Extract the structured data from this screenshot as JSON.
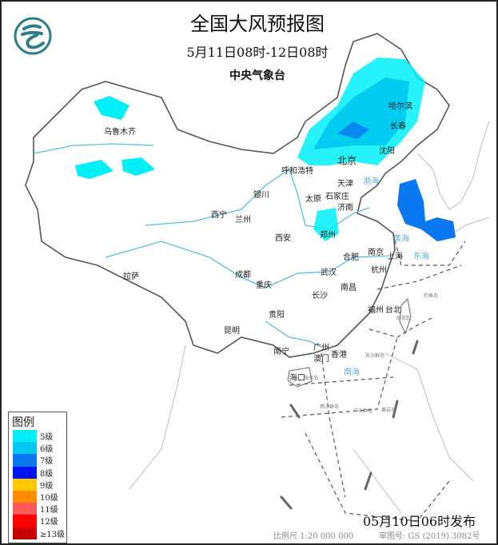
{
  "header": {
    "title": "全国大风预报图",
    "period": "5月11日08时-12日08时",
    "agency": "中央气象台"
  },
  "legend": {
    "title": "图例",
    "items": [
      {
        "label": "5级",
        "color": "#00F0F8"
      },
      {
        "label": "6级",
        "color": "#00C8F0"
      },
      {
        "label": "7级",
        "color": "#0A78F0"
      },
      {
        "label": "8级",
        "color": "#0014F0"
      },
      {
        "label": "9级",
        "color": "#FFC800"
      },
      {
        "label": "10级",
        "color": "#FF8C00"
      },
      {
        "label": "11级",
        "color": "#FF5A5A"
      },
      {
        "label": "12级",
        "color": "#FF0000"
      },
      {
        "label": "≥13级",
        "color": "#C80000"
      }
    ]
  },
  "cities": [
    "乌鲁木齐",
    "哈尔滨",
    "长春",
    "沈阳",
    "北京",
    "天津",
    "呼和浩特",
    "石家庄",
    "太原",
    "济南",
    "银川",
    "西宁",
    "兰州",
    "郑州",
    "西安",
    "拉萨",
    "成都",
    "重庆",
    "武汉",
    "合肥",
    "南京",
    "上海",
    "杭州",
    "南昌",
    "长沙",
    "贵阳",
    "昆明",
    "福州",
    "台北",
    "南宁",
    "广州",
    "澳门",
    "香港",
    "海口"
  ],
  "seas": [
    "渤海",
    "黄海",
    "东海",
    "南海"
  ],
  "islands": [
    "东沙群岛",
    "西沙群岛",
    "中沙群岛",
    "黄岩岛",
    "钓鱼岛",
    "台湾岛",
    "海南岛"
  ],
  "footer": {
    "issued": "05月10日06时发布",
    "scale": "比例尺 1:20 000 000",
    "review": "审图号: GS (2019) 3082号"
  }
}
